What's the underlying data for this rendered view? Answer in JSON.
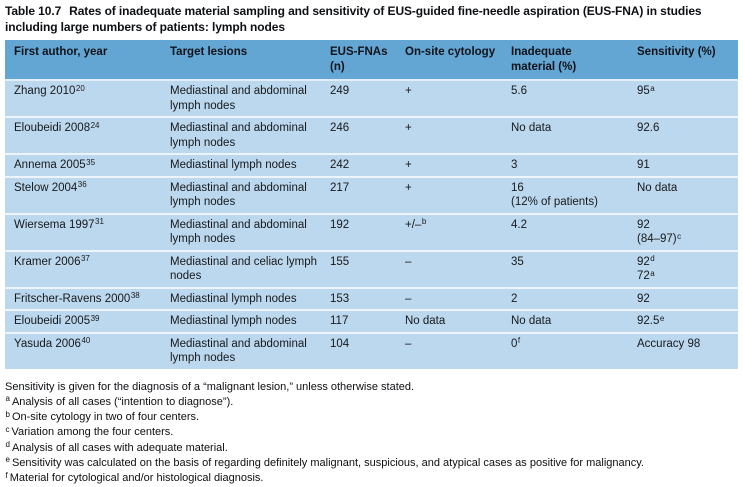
{
  "title": {
    "label": "Table 10.7",
    "text": "Rates of inadequate material sampling and sensitivity of EUS-guided fine-needle aspiration (EUS-FNA) in studies including large numbers of patients: lymph nodes"
  },
  "colors": {
    "header_bg": "#63a5d3",
    "row_bg": "#bcd8ee",
    "separator": "#eef4fb",
    "text": "#17191c"
  },
  "table": {
    "cell_names": [
      "author-cell",
      "target-lesions-cell",
      "eus-fnas-cell",
      "onsite-cytology-cell",
      "inadequate-material-cell",
      "sensitivity-cell"
    ],
    "columns": [
      {
        "lines": [
          {
            "t": "First author, year",
            "sup": ""
          }
        ]
      },
      {
        "lines": [
          {
            "t": "Target lesions",
            "sup": ""
          }
        ]
      },
      {
        "lines": [
          {
            "t": "EUS-FNAs",
            "sup": ""
          },
          {
            "t": "(n)",
            "sup": ""
          }
        ]
      },
      {
        "lines": [
          {
            "t": "On-site cytology",
            "sup": ""
          }
        ]
      },
      {
        "lines": [
          {
            "t": "Inadequate",
            "sup": ""
          },
          {
            "t": "material (%)",
            "sup": ""
          }
        ]
      },
      {
        "lines": [
          {
            "t": "Sensitivity (%)",
            "sup": ""
          }
        ]
      }
    ],
    "rows": [
      {
        "cells": [
          {
            "lines": [
              {
                "t": "Zhang 2010",
                "sup": "20"
              }
            ]
          },
          {
            "lines": [
              {
                "t": "Mediastinal and abdominal",
                "sup": ""
              },
              {
                "t": "lymph nodes",
                "sup": ""
              }
            ]
          },
          {
            "lines": [
              {
                "t": "249",
                "sup": ""
              }
            ]
          },
          {
            "lines": [
              {
                "t": "+",
                "sup": ""
              }
            ]
          },
          {
            "lines": [
              {
                "t": "5.6",
                "sup": ""
              }
            ]
          },
          {
            "lines": [
              {
                "t": "95",
                "sup": "a"
              }
            ]
          }
        ]
      },
      {
        "cells": [
          {
            "lines": [
              {
                "t": "Eloubeidi 2008",
                "sup": "24"
              }
            ]
          },
          {
            "lines": [
              {
                "t": "Mediastinal and abdominal",
                "sup": ""
              },
              {
                "t": "lymph nodes",
                "sup": ""
              }
            ]
          },
          {
            "lines": [
              {
                "t": "246",
                "sup": ""
              }
            ]
          },
          {
            "lines": [
              {
                "t": "+",
                "sup": ""
              }
            ]
          },
          {
            "lines": [
              {
                "t": "No data",
                "sup": ""
              }
            ]
          },
          {
            "lines": [
              {
                "t": "92.6",
                "sup": ""
              }
            ]
          }
        ]
      },
      {
        "cells": [
          {
            "lines": [
              {
                "t": "Annema 2005",
                "sup": "35"
              }
            ]
          },
          {
            "lines": [
              {
                "t": "Mediastinal lymph nodes",
                "sup": ""
              }
            ]
          },
          {
            "lines": [
              {
                "t": "242",
                "sup": ""
              }
            ]
          },
          {
            "lines": [
              {
                "t": "+",
                "sup": ""
              }
            ]
          },
          {
            "lines": [
              {
                "t": "3",
                "sup": ""
              }
            ]
          },
          {
            "lines": [
              {
                "t": "91",
                "sup": ""
              }
            ]
          }
        ]
      },
      {
        "cells": [
          {
            "lines": [
              {
                "t": "Stelow 2004",
                "sup": "36"
              }
            ]
          },
          {
            "lines": [
              {
                "t": "Mediastinal and abdominal",
                "sup": ""
              },
              {
                "t": "lymph nodes",
                "sup": ""
              }
            ]
          },
          {
            "lines": [
              {
                "t": "217",
                "sup": ""
              }
            ]
          },
          {
            "lines": [
              {
                "t": "+",
                "sup": ""
              }
            ]
          },
          {
            "lines": [
              {
                "t": "16",
                "sup": ""
              },
              {
                "t": "(12% of patients)",
                "sup": ""
              }
            ]
          },
          {
            "lines": [
              {
                "t": "No data",
                "sup": ""
              }
            ]
          }
        ]
      },
      {
        "cells": [
          {
            "lines": [
              {
                "t": "Wiersema 1997",
                "sup": "31"
              }
            ]
          },
          {
            "lines": [
              {
                "t": "Mediastinal and abdominal",
                "sup": ""
              },
              {
                "t": "lymph nodes",
                "sup": ""
              }
            ]
          },
          {
            "lines": [
              {
                "t": "192",
                "sup": ""
              }
            ]
          },
          {
            "lines": [
              {
                "t": "+/–",
                "sup": "b"
              }
            ]
          },
          {
            "lines": [
              {
                "t": "4.2",
                "sup": ""
              }
            ]
          },
          {
            "lines": [
              {
                "t": "92",
                "sup": ""
              },
              {
                "t": "(84–97)",
                "sup": "c"
              }
            ]
          }
        ]
      },
      {
        "cells": [
          {
            "lines": [
              {
                "t": "Kramer 2006",
                "sup": "37"
              }
            ]
          },
          {
            "lines": [
              {
                "t": "Mediastinal and celiac lymph",
                "sup": ""
              },
              {
                "t": "nodes",
                "sup": ""
              }
            ]
          },
          {
            "lines": [
              {
                "t": "155",
                "sup": ""
              }
            ]
          },
          {
            "lines": [
              {
                "t": "–",
                "sup": ""
              }
            ]
          },
          {
            "lines": [
              {
                "t": "35",
                "sup": ""
              }
            ]
          },
          {
            "lines": [
              {
                "t": "92",
                "sup": "d"
              },
              {
                "t": "72",
                "sup": "a"
              }
            ]
          }
        ]
      },
      {
        "cells": [
          {
            "lines": [
              {
                "t": "Fritscher-Ravens 2000",
                "sup": "38"
              }
            ]
          },
          {
            "lines": [
              {
                "t": "Mediastinal lymph nodes",
                "sup": ""
              }
            ]
          },
          {
            "lines": [
              {
                "t": "153",
                "sup": ""
              }
            ]
          },
          {
            "lines": [
              {
                "t": "–",
                "sup": ""
              }
            ]
          },
          {
            "lines": [
              {
                "t": "2",
                "sup": ""
              }
            ]
          },
          {
            "lines": [
              {
                "t": "92",
                "sup": ""
              }
            ]
          }
        ]
      },
      {
        "cells": [
          {
            "lines": [
              {
                "t": "Eloubeidi 2005",
                "sup": "39"
              }
            ]
          },
          {
            "lines": [
              {
                "t": "Mediastinal lymph nodes",
                "sup": ""
              }
            ]
          },
          {
            "lines": [
              {
                "t": "117",
                "sup": ""
              }
            ]
          },
          {
            "lines": [
              {
                "t": "No data",
                "sup": ""
              }
            ]
          },
          {
            "lines": [
              {
                "t": "No data",
                "sup": ""
              }
            ]
          },
          {
            "lines": [
              {
                "t": "92.5",
                "sup": "e"
              }
            ]
          }
        ]
      },
      {
        "cells": [
          {
            "lines": [
              {
                "t": "Yasuda 2006",
                "sup": "40"
              }
            ]
          },
          {
            "lines": [
              {
                "t": "Mediastinal and abdominal",
                "sup": ""
              },
              {
                "t": "lymph nodes",
                "sup": ""
              }
            ]
          },
          {
            "lines": [
              {
                "t": "104",
                "sup": ""
              }
            ]
          },
          {
            "lines": [
              {
                "t": "–",
                "sup": ""
              }
            ]
          },
          {
            "lines": [
              {
                "t": "0",
                "sup": "f"
              }
            ]
          },
          {
            "lines": [
              {
                "t": "Accuracy 98",
                "sup": ""
              }
            ]
          }
        ]
      }
    ]
  },
  "footnotes": [
    {
      "sup": "",
      "text": "Sensitivity is given for the diagnosis of a “malignant lesion,” unless otherwise stated."
    },
    {
      "sup": "a",
      "text": "Analysis of all cases (“intention to diagnose”)."
    },
    {
      "sup": "b",
      "text": "On-site cytology in two of four centers."
    },
    {
      "sup": "c",
      "text": "Variation among the four centers."
    },
    {
      "sup": "d",
      "text": "Analysis of all cases with adequate material."
    },
    {
      "sup": "e",
      "text": "Sensitivity was calculated on the basis of regarding definitely malignant, suspicious, and atypical cases as positive for malignancy."
    },
    {
      "sup": "f",
      "text": "Material for cytological and/or histological diagnosis."
    }
  ]
}
